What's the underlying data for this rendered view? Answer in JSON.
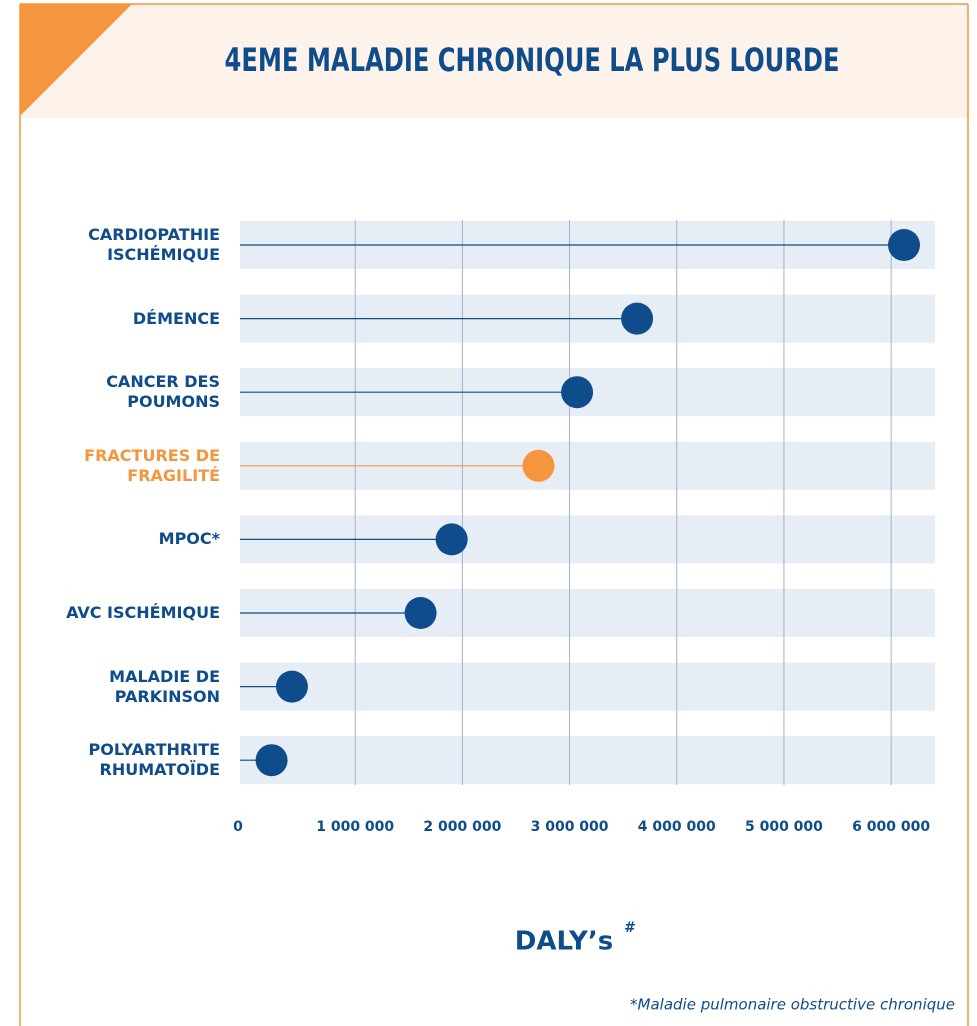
{
  "chart_data": {
    "type": "lollipop",
    "title": "4EME MALADIE CHRONIQUE LA PLUS LOURDE",
    "categories": [
      "CARDIOPATHIE ISCHÉMIQUE",
      "DÉMENCE",
      "CANCER DES POUMONS",
      "FRACTURES DE FRAGILITÉ",
      "MPOC*",
      "AVC ISCHÉMIQUE",
      "MALADIE DE PARKINSON",
      "POLYARTHRITE RHUMATOÏDE"
    ],
    "values": [
      6120000,
      3630000,
      3070000,
      2710000,
      1900000,
      1610000,
      410000,
      220000
    ],
    "colors": [
      "#0f4c8c",
      "#0f4c8c",
      "#0f4c8c",
      "#f5963f",
      "#0f4c8c",
      "#0f4c8c",
      "#0f4c8c",
      "#0f4c8c"
    ],
    "xlim": [
      0,
      6400000
    ],
    "xticks": [
      0,
      {
        "value": 1000000,
        "label": "1 000 000"
      },
      {
        "value": 2000000,
        "label": "2 000 000"
      },
      {
        "value": 3000000,
        "label": "3 000 000"
      },
      {
        "value": 4000000,
        "label": "4 000 000"
      },
      {
        "value": 5000000,
        "label": "5 000 000"
      },
      {
        "value": 6000000,
        "label": "6 000 000"
      }
    ],
    "grid": true,
    "x_label": "DALY’s",
    "x_label_marker": "#",
    "footnote": "*Maladie pulmonaire obstructive chronique"
  }
}
